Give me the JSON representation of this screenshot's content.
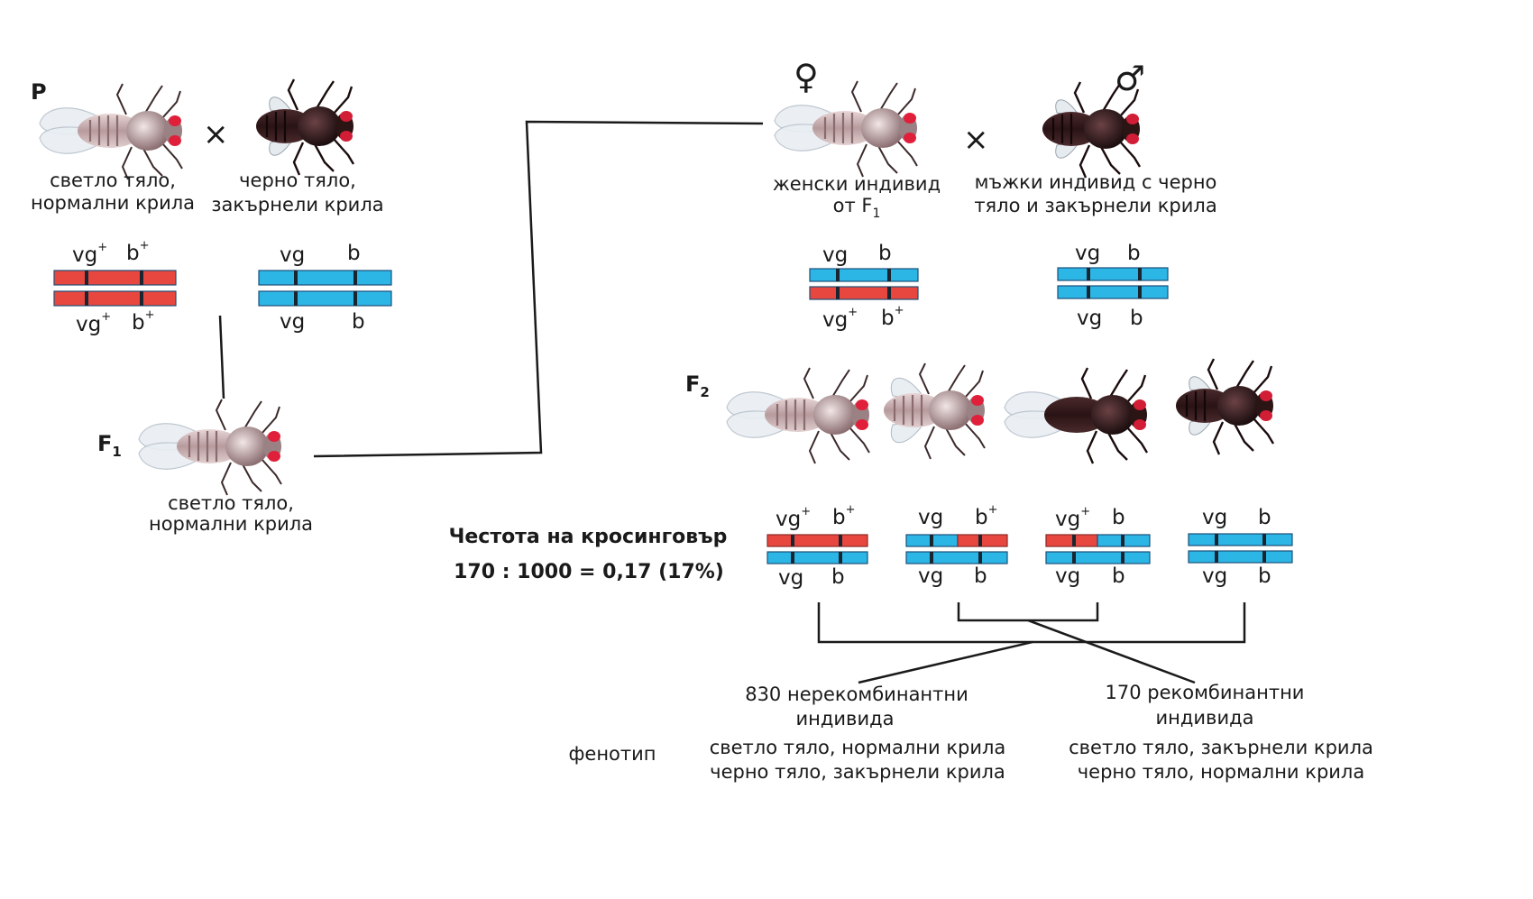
{
  "labels": {
    "p": "P",
    "f1": "F",
    "f1_sub": "1",
    "f2": "F",
    "f2_sub": "2",
    "cross": "×",
    "female_symbol": "♀",
    "male_symbol": "♂"
  },
  "captions": {
    "p_left_1": "светло тяло,",
    "p_left_2": "нормални крила",
    "p_right_1": "черно тяло,",
    "p_right_2": "закърнели крила",
    "f1_1": "светло тяло,",
    "f1_2": "нормални крила",
    "female_1": "женски индивид",
    "female_2": "от F",
    "female_2_sub": "1",
    "male_1": "мъжки индивид с черно",
    "male_2": "тяло и закърнели крила"
  },
  "genes": {
    "vg": "vg",
    "b": "b",
    "plus": "+"
  },
  "crossover": {
    "title": "Честота на кросинговър",
    "formula": "170 : 1000 = 0,17 (17%)"
  },
  "results": {
    "nonrecomb_1": "830 нерекомбинантни",
    "nonrecomb_2": "индивида",
    "recomb_1": "170 рекомбинантни",
    "recomb_2": "индивида",
    "phenotype": "фенотип",
    "pheno_left_1": "светло тяло, нормални крила",
    "pheno_left_2": "черно тяло, закърнели крила",
    "pheno_right_1": "светло тяло, закърнели крила",
    "pheno_right_2": "черно тяло, нормални крила"
  },
  "colors": {
    "red_chromosome": "#e8473f",
    "blue_chromosome": "#2bb6e6",
    "band": "#1b2530",
    "light_body": "#d9c2c4",
    "dark_body": "#3a1d1f",
    "eye": "#e0203a"
  }
}
